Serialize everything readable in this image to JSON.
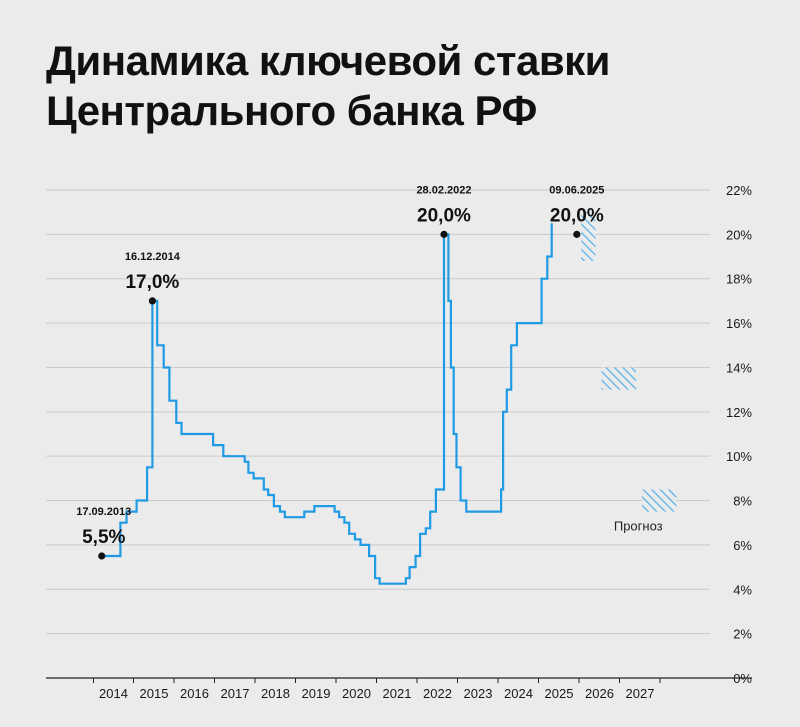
{
  "title": {
    "line1": "Динамика ключевой ставки",
    "line2": "Центрального банка РФ"
  },
  "colors": {
    "line": "#1f9be6",
    "grid": "#c9c9c9",
    "axis": "#222222",
    "text": "#111111",
    "background": "#ebebeb"
  },
  "chart_data": {
    "type": "line",
    "title": "Динамика ключевой ставки Центрального банка РФ",
    "xlabel": "",
    "ylabel": "",
    "xlim": [
      2013.0,
      2028.5
    ],
    "ylim": [
      0,
      22
    ],
    "y_axis_position": "right",
    "grid": "horizontal",
    "y_ticks": [
      "0%",
      "2%",
      "4%",
      "6%",
      "8%",
      "10%",
      "12%",
      "14%",
      "16%",
      "18%",
      "20%",
      "22%"
    ],
    "x_ticks": [
      "2014",
      "2015",
      "2016",
      "2017",
      "2018",
      "2019",
      "2020",
      "2021",
      "2022",
      "2023",
      "2024",
      "2025",
      "2026",
      "2027"
    ],
    "series": [
      {
        "points": [
          [
            2013.7,
            5.5
          ],
          [
            2014.17,
            5.5
          ],
          [
            2014.17,
            7.0
          ],
          [
            2014.32,
            7.0
          ],
          [
            2014.32,
            7.5
          ],
          [
            2014.57,
            7.5
          ],
          [
            2014.57,
            8.0
          ],
          [
            2014.83,
            8.0
          ],
          [
            2014.83,
            9.5
          ],
          [
            2014.96,
            9.5
          ],
          [
            2014.96,
            17.0
          ],
          [
            2015.08,
            17.0
          ],
          [
            2015.08,
            15.0
          ],
          [
            2015.24,
            15.0
          ],
          [
            2015.24,
            14.0
          ],
          [
            2015.38,
            14.0
          ],
          [
            2015.38,
            12.5
          ],
          [
            2015.55,
            12.5
          ],
          [
            2015.55,
            11.5
          ],
          [
            2015.68,
            11.5
          ],
          [
            2015.68,
            11.0
          ],
          [
            2016.46,
            11.0
          ],
          [
            2016.46,
            10.5
          ],
          [
            2016.71,
            10.5
          ],
          [
            2016.71,
            10.0
          ],
          [
            2017.24,
            10.0
          ],
          [
            2017.24,
            9.75
          ],
          [
            2017.33,
            9.75
          ],
          [
            2017.33,
            9.25
          ],
          [
            2017.46,
            9.25
          ],
          [
            2017.46,
            9.0
          ],
          [
            2017.71,
            9.0
          ],
          [
            2017.71,
            8.5
          ],
          [
            2017.82,
            8.5
          ],
          [
            2017.82,
            8.25
          ],
          [
            2017.96,
            8.25
          ],
          [
            2017.96,
            7.75
          ],
          [
            2018.11,
            7.75
          ],
          [
            2018.11,
            7.5
          ],
          [
            2018.23,
            7.5
          ],
          [
            2018.23,
            7.25
          ],
          [
            2018.71,
            7.25
          ],
          [
            2018.71,
            7.5
          ],
          [
            2018.96,
            7.5
          ],
          [
            2018.96,
            7.75
          ],
          [
            2019.46,
            7.75
          ],
          [
            2019.46,
            7.5
          ],
          [
            2019.57,
            7.5
          ],
          [
            2019.57,
            7.25
          ],
          [
            2019.7,
            7.25
          ],
          [
            2019.7,
            7.0
          ],
          [
            2019.82,
            7.0
          ],
          [
            2019.82,
            6.5
          ],
          [
            2019.96,
            6.5
          ],
          [
            2019.96,
            6.25
          ],
          [
            2020.1,
            6.25
          ],
          [
            2020.1,
            6.0
          ],
          [
            2020.31,
            6.0
          ],
          [
            2020.31,
            5.5
          ],
          [
            2020.46,
            5.5
          ],
          [
            2020.46,
            4.5
          ],
          [
            2020.57,
            4.5
          ],
          [
            2020.57,
            4.25
          ],
          [
            2021.22,
            4.25
          ],
          [
            2021.22,
            4.5
          ],
          [
            2021.31,
            4.5
          ],
          [
            2021.31,
            5.0
          ],
          [
            2021.46,
            5.0
          ],
          [
            2021.46,
            5.5
          ],
          [
            2021.57,
            5.5
          ],
          [
            2021.57,
            6.5
          ],
          [
            2021.71,
            6.5
          ],
          [
            2021.71,
            6.75
          ],
          [
            2021.82,
            6.75
          ],
          [
            2021.82,
            7.5
          ],
          [
            2021.96,
            7.5
          ],
          [
            2021.96,
            8.5
          ],
          [
            2022.16,
            8.5
          ],
          [
            2022.16,
            20.0
          ],
          [
            2022.27,
            20.0
          ],
          [
            2022.27,
            17.0
          ],
          [
            2022.33,
            17.0
          ],
          [
            2022.33,
            14.0
          ],
          [
            2022.4,
            14.0
          ],
          [
            2022.4,
            11.0
          ],
          [
            2022.47,
            11.0
          ],
          [
            2022.47,
            9.5
          ],
          [
            2022.57,
            9.5
          ],
          [
            2022.57,
            8.0
          ],
          [
            2022.71,
            8.0
          ],
          [
            2022.71,
            7.5
          ],
          [
            2023.57,
            7.5
          ],
          [
            2023.57,
            8.5
          ],
          [
            2023.62,
            8.5
          ],
          [
            2023.62,
            12.0
          ],
          [
            2023.71,
            12.0
          ],
          [
            2023.71,
            13.0
          ],
          [
            2023.82,
            13.0
          ],
          [
            2023.82,
            15.0
          ],
          [
            2023.96,
            15.0
          ],
          [
            2023.96,
            16.0
          ],
          [
            2024.57,
            16.0
          ],
          [
            2024.57,
            18.0
          ],
          [
            2024.71,
            18.0
          ],
          [
            2024.71,
            19.0
          ],
          [
            2024.82,
            19.0
          ],
          [
            2024.82,
            20.5
          ]
        ]
      }
    ],
    "annotations": [
      {
        "date": "17.09.2013",
        "value": "5,5%",
        "x": 2013.71,
        "y": 5.5
      },
      {
        "date": "16.12.2014",
        "value": "17,0%",
        "x": 2014.96,
        "y": 17.0
      },
      {
        "date": "28.02.2022",
        "value": "20,0%",
        "x": 2022.16,
        "y": 20.0
      },
      {
        "date": "09.06.2025",
        "value": "20,0%",
        "x": 2025.44,
        "y": 20.0
      }
    ],
    "forecast": {
      "label": "Прогноз",
      "ranges": [
        {
          "x_start": 2025.5,
          "x_end": 2026.0,
          "y_low": 18.8,
          "y_high": 21.0
        },
        {
          "x_start": 2026.0,
          "x_end": 2027.0,
          "y_low": 13.0,
          "y_high": 14.0
        },
        {
          "x_start": 2027.0,
          "x_end": 2028.0,
          "y_low": 7.5,
          "y_high": 8.5
        }
      ]
    }
  }
}
